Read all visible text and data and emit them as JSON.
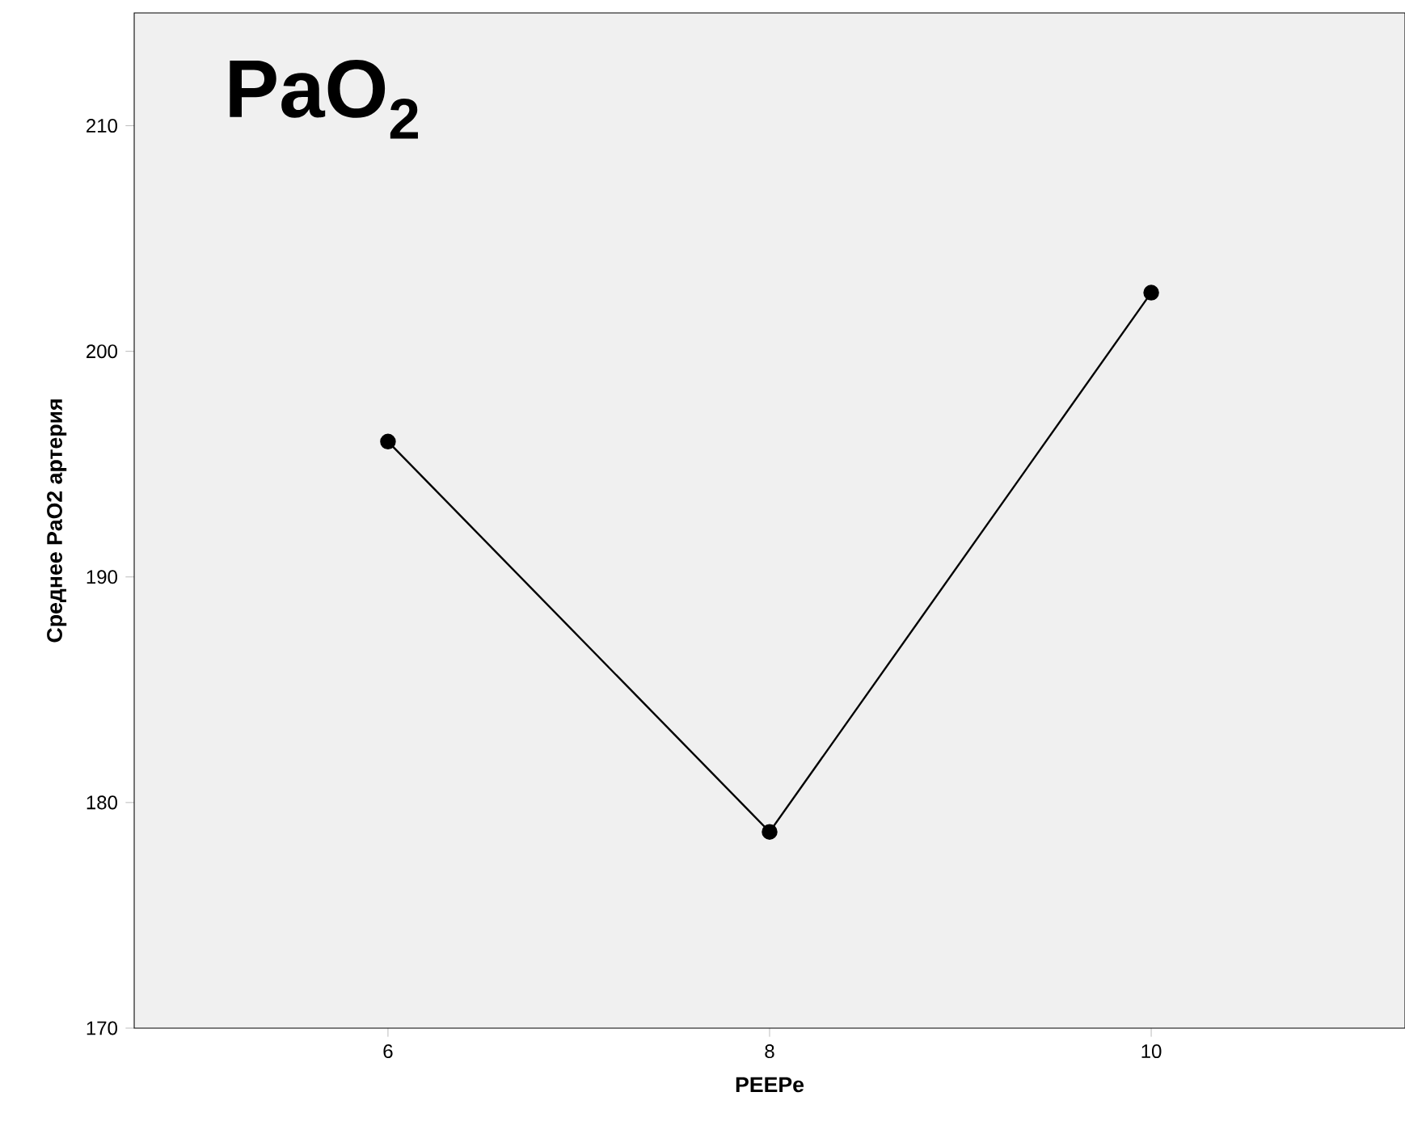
{
  "chart_data": {
    "type": "line",
    "title": "PaO$_{2}$",
    "xlabel": "PEEPe",
    "ylabel": "Среднее PaO2 артерия",
    "x": [
      6,
      8,
      10
    ],
    "series": [
      {
        "color": "#000000",
        "values": [
          196.0,
          178.7,
          202.6
        ]
      }
    ],
    "xlim": [
      4.67,
      11.33
    ],
    "xticks": [
      6,
      8,
      10
    ],
    "ylim": [
      170,
      215
    ],
    "yticks": [
      170,
      180,
      190,
      200,
      210
    ],
    "marker": "circle",
    "line_style": "solid"
  }
}
